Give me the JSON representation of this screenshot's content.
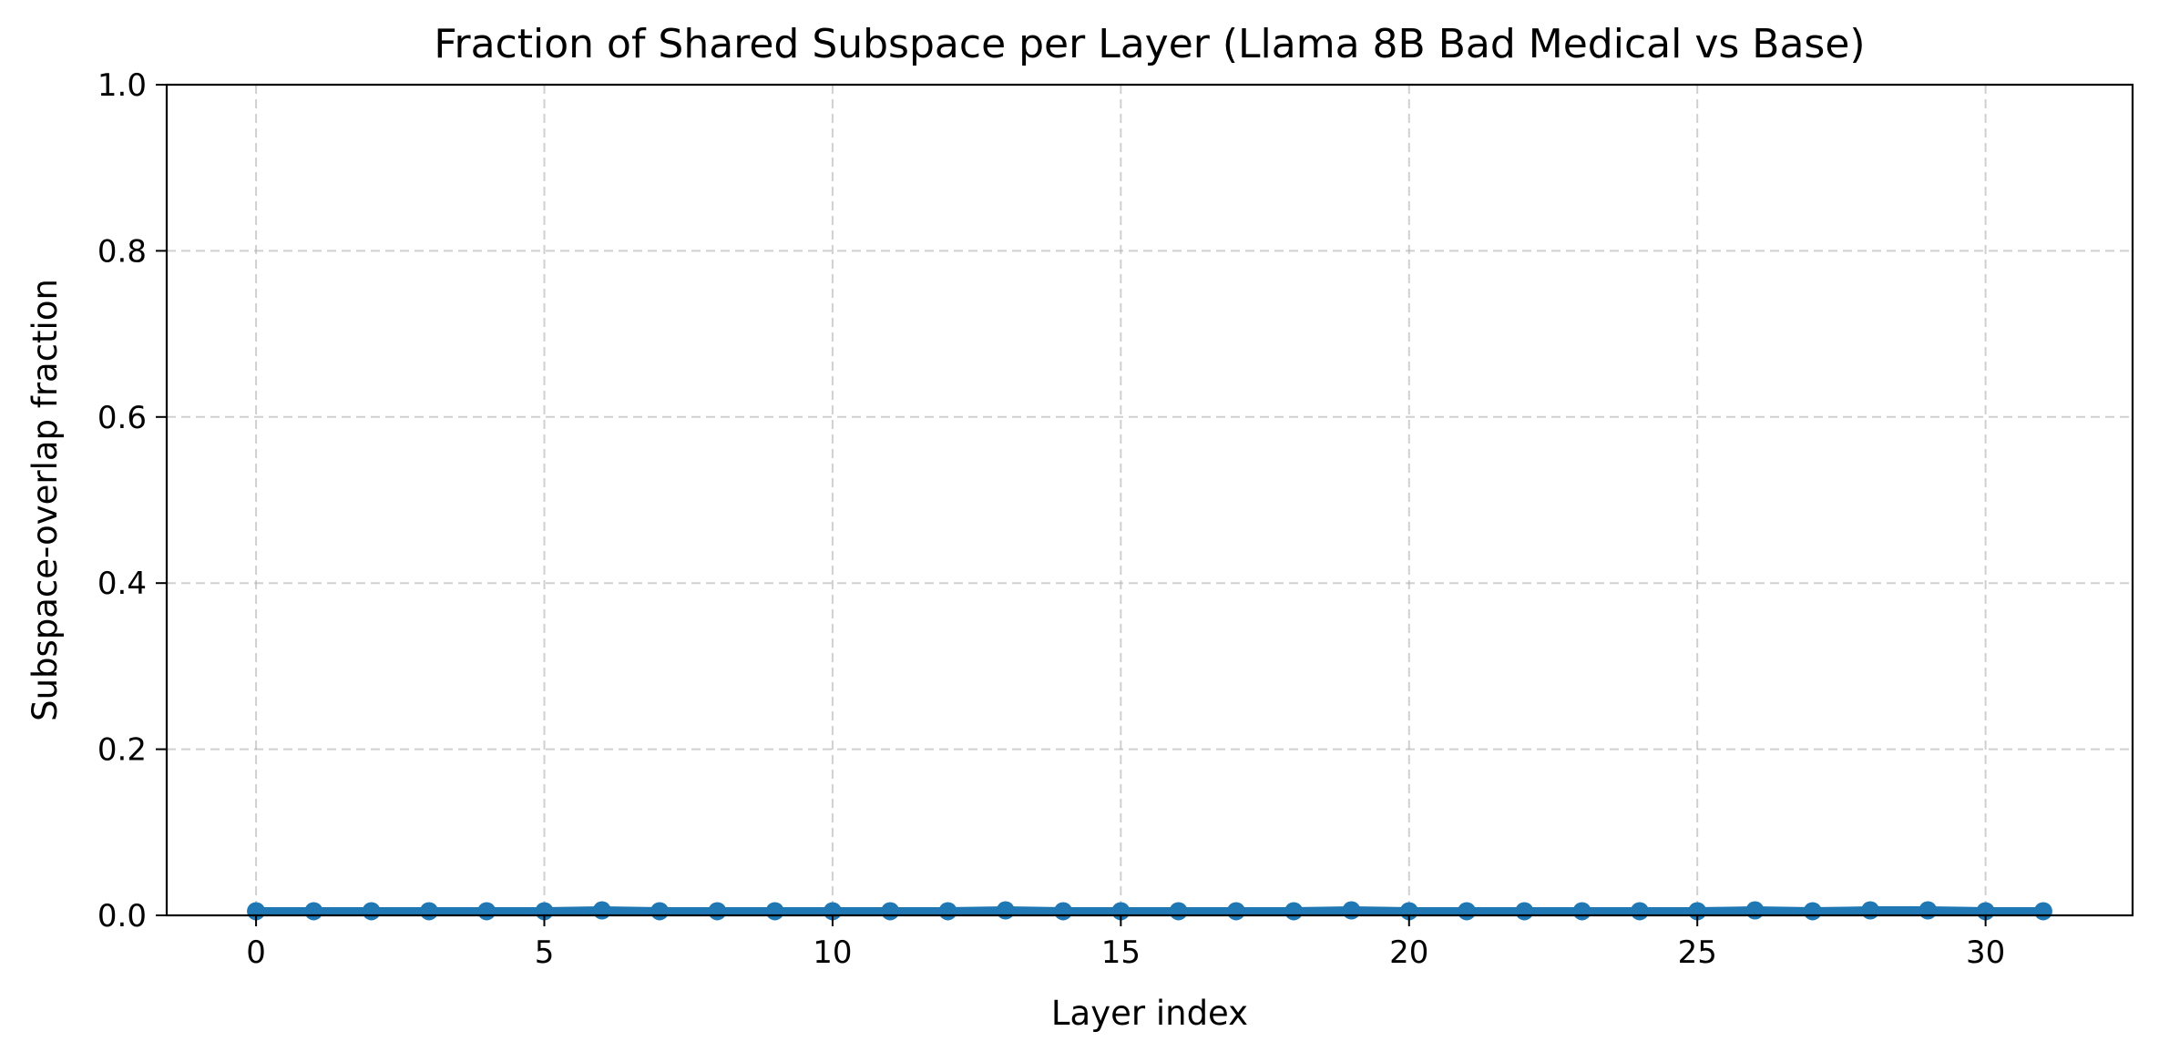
{
  "chart_data": {
    "type": "line",
    "title": "Fraction of Shared Subspace per Layer (Llama 8B Bad Medical vs Base)",
    "xlabel": "Layer index",
    "ylabel": "Subspace-overlap fraction",
    "xlim": [
      -1.55,
      32.55
    ],
    "ylim": [
      0,
      1
    ],
    "x_ticks": [
      0,
      5,
      10,
      15,
      20,
      25,
      30
    ],
    "x_tick_labels": [
      "0",
      "5",
      "10",
      "15",
      "20",
      "25",
      "30"
    ],
    "y_ticks": [
      0,
      0.2,
      0.4,
      0.6,
      0.8,
      1.0
    ],
    "y_tick_labels": [
      "0.0",
      "0.2",
      "0.4",
      "0.6",
      "0.8",
      "1.0"
    ],
    "grid": true,
    "grid_style": "dashed",
    "legend": "none",
    "series": [
      {
        "color": "#1f77b4",
        "marker": "circle",
        "x": [
          0,
          1,
          2,
          3,
          4,
          5,
          6,
          7,
          8,
          9,
          10,
          11,
          12,
          13,
          14,
          15,
          16,
          17,
          18,
          19,
          20,
          21,
          22,
          23,
          24,
          25,
          26,
          27,
          28,
          29,
          30,
          31
        ],
        "values": [
          0.005,
          0.005,
          0.005,
          0.005,
          0.005,
          0.005,
          0.006,
          0.005,
          0.005,
          0.005,
          0.005,
          0.005,
          0.005,
          0.006,
          0.005,
          0.005,
          0.005,
          0.005,
          0.005,
          0.006,
          0.005,
          0.005,
          0.005,
          0.005,
          0.005,
          0.005,
          0.006,
          0.005,
          0.006,
          0.006,
          0.005,
          0.005
        ]
      }
    ]
  }
}
